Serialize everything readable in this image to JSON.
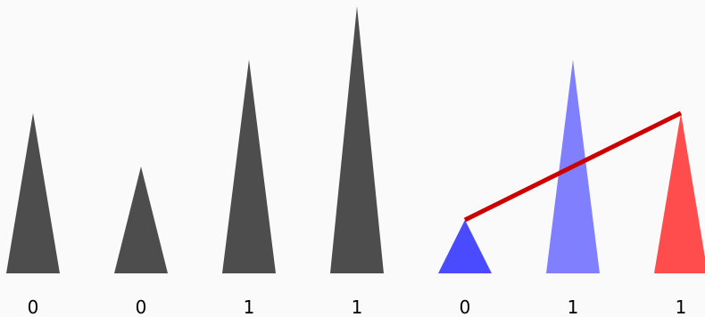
{
  "colors": {
    "background": "#fafafa",
    "default": "#4d4d4d",
    "blue": "#4a4aff",
    "light_blue": "#8080ff",
    "red": "#ff4d4d",
    "connector": "#cc0000"
  },
  "bars": [
    {
      "label": "0",
      "height": 3,
      "color": "default"
    },
    {
      "label": "0",
      "height": 2,
      "color": "default"
    },
    {
      "label": "1",
      "height": 4,
      "color": "default"
    },
    {
      "label": "1",
      "height": 5,
      "color": "default"
    },
    {
      "label": "0",
      "height": 1,
      "color": "blue"
    },
    {
      "label": "1",
      "height": 4,
      "color": "light_blue"
    },
    {
      "label": "1",
      "height": 3,
      "color": "red"
    }
  ],
  "connector": {
    "from": 4,
    "to": 6,
    "color": "connector"
  }
}
